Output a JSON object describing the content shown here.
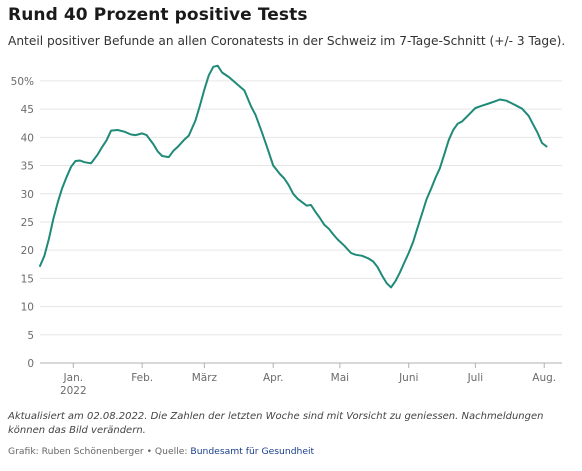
{
  "header": {
    "title": "Rund 40 Prozent positive Tests",
    "subtitle": "Anteil positiver Befunde an allen Coronatests in der Schweiz im 7-Tage-Schnitt (+/- 3 Tage)."
  },
  "footer": {
    "note": "Aktualisiert am 02.08.2022. Die Zahlen der letzten Woche sind mit Vorsicht zu geniessen. Nachmeldungen können das Bild verändern.",
    "credit": "Grafik: Ruben Schönenberger • Quelle: ",
    "source_link": "Bundesamt für Gesundheit"
  },
  "colors": {
    "line": "#1f8a78",
    "grid": "#e6e6e6",
    "axis": "#b0b0b0"
  },
  "chart_data": {
    "type": "line",
    "ylim": [
      0,
      53
    ],
    "y_ticks": [
      0,
      5,
      10,
      15,
      20,
      25,
      30,
      35,
      40,
      45,
      50
    ],
    "y_tick_labels": [
      "0",
      "5",
      "10",
      "15",
      "20",
      "25",
      "30",
      "35",
      "40",
      "45",
      "50%"
    ],
    "x_ticks": [
      {
        "label": "Jan.",
        "sublabel": "2022",
        "day": 15
      },
      {
        "label": "Feb.",
        "day": 46
      },
      {
        "label": "März",
        "day": 74
      },
      {
        "label": "Apr.",
        "day": 105
      },
      {
        "label": "Mai",
        "day": 135
      },
      {
        "label": "Juni",
        "day": 166
      },
      {
        "label": "Juli",
        "day": 196
      },
      {
        "label": "Aug.",
        "day": 227
      }
    ],
    "grid": true,
    "series": [
      {
        "x": [
          0,
          2,
          4,
          6,
          8,
          10,
          12,
          14,
          16,
          18,
          20,
          23,
          26,
          28,
          30,
          32,
          35,
          38,
          41,
          43,
          46,
          48,
          51,
          53,
          55,
          58,
          60,
          62,
          65,
          67,
          70,
          72,
          74,
          76,
          78,
          80,
          82,
          85,
          87,
          90,
          92,
          95,
          97,
          100,
          102,
          105,
          108,
          110,
          112,
          114,
          116,
          118,
          120,
          122,
          124,
          126,
          128,
          130,
          132,
          134,
          137,
          140,
          142,
          145,
          148,
          150,
          152,
          154,
          156,
          158,
          160,
          162,
          164,
          166,
          168,
          170,
          172,
          174,
          176,
          178,
          180,
          182,
          184,
          186,
          188,
          190,
          193,
          196,
          199,
          202,
          205,
          207,
          210,
          212,
          215,
          217,
          220,
          222,
          224,
          226,
          228
        ],
        "y": [
          17.2,
          19.0,
          22.0,
          25.5,
          28.5,
          31.0,
          33.0,
          34.8,
          35.8,
          35.9,
          35.6,
          35.4,
          37.0,
          38.3,
          39.5,
          41.2,
          41.3,
          41.0,
          40.5,
          40.4,
          40.7,
          40.4,
          38.8,
          37.5,
          36.7,
          36.5,
          37.6,
          38.3,
          39.6,
          40.3,
          43.0,
          45.6,
          48.5,
          51.0,
          52.5,
          52.7,
          51.5,
          50.7,
          50.0,
          49.0,
          48.3,
          45.5,
          44.0,
          40.8,
          38.5,
          35.0,
          33.5,
          32.7,
          31.5,
          30.0,
          29.1,
          28.5,
          27.9,
          28.0,
          26.8,
          25.7,
          24.5,
          23.8,
          22.8,
          21.9,
          20.8,
          19.5,
          19.2,
          19.0,
          18.5,
          18.0,
          17.0,
          15.5,
          14.2,
          13.4,
          14.5,
          16.0,
          17.8,
          19.5,
          21.5,
          24.0,
          26.5,
          29.0,
          30.8,
          32.8,
          34.5,
          37.0,
          39.5,
          41.3,
          42.4,
          42.8,
          44.0,
          45.2,
          45.6,
          46.0,
          46.4,
          46.7,
          46.5,
          46.1,
          45.5,
          45.1,
          43.8,
          42.3,
          40.8,
          39.0,
          38.4
        ]
      }
    ]
  }
}
